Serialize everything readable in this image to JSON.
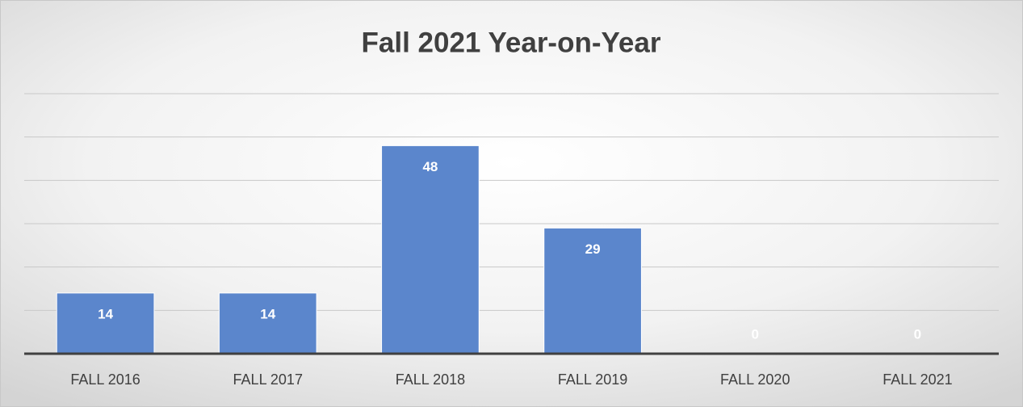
{
  "chart_data": {
    "type": "bar",
    "title": "Fall 2021 Year-on-Year",
    "categories": [
      "FALL 2016",
      "FALL 2017",
      "FALL 2018",
      "FALL 2019",
      "FALL 2020",
      "FALL 2021"
    ],
    "values": [
      14,
      14,
      48,
      29,
      0,
      0
    ],
    "color": "#5b86cc",
    "ylim": [
      0,
      60
    ],
    "yticks": [
      0,
      10,
      20,
      30,
      40,
      50,
      60
    ],
    "grid": true
  }
}
